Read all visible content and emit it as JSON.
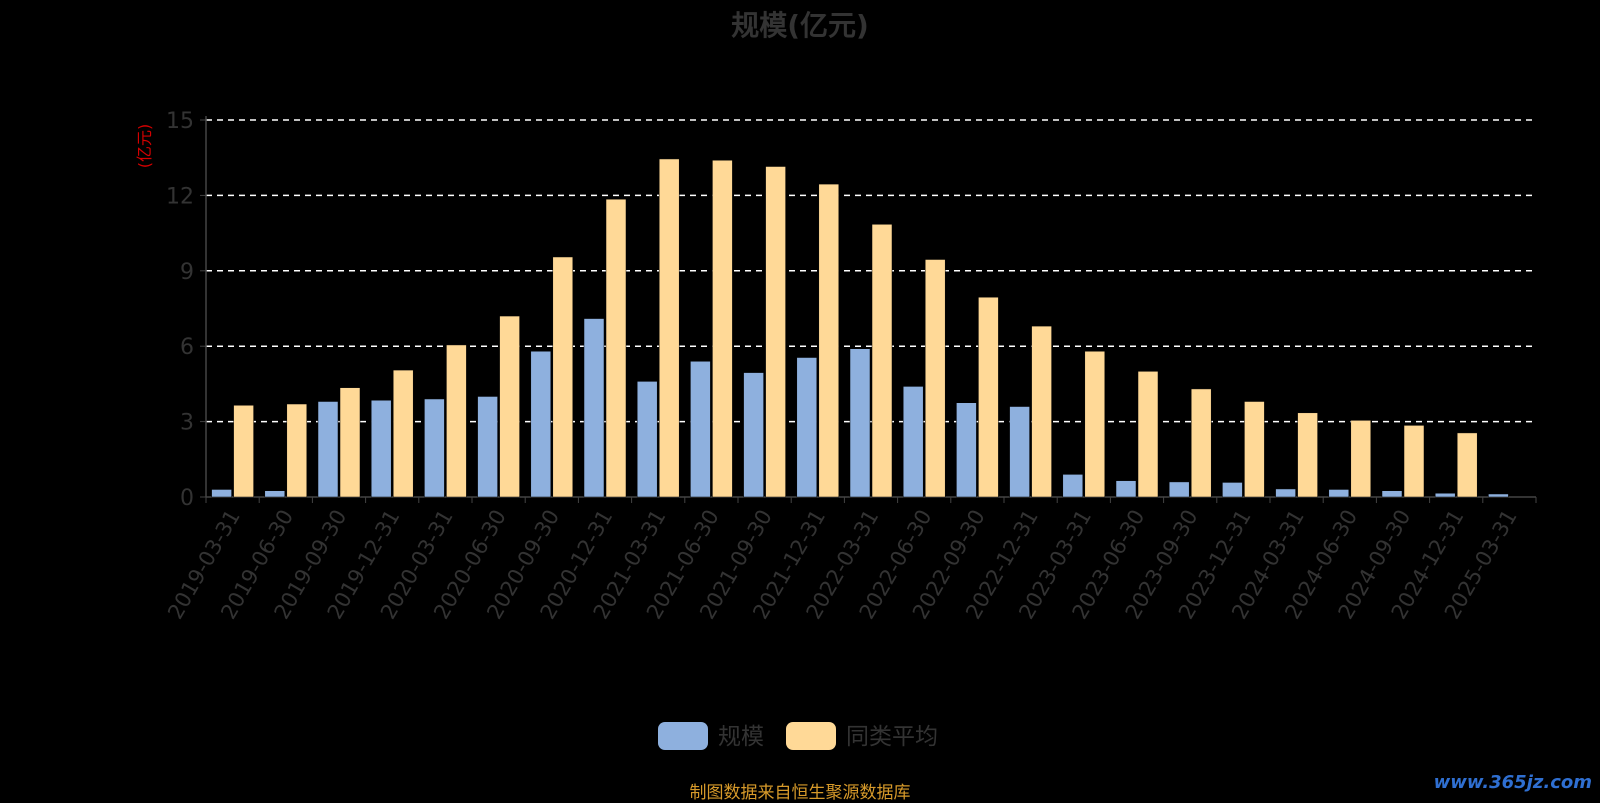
{
  "chart_data": {
    "type": "bar",
    "title": "规模(亿元)",
    "ylabel": "(亿元)",
    "ylim": [
      0,
      15
    ],
    "yticks": [
      0,
      3,
      6,
      9,
      12,
      15
    ],
    "grid": "horizontal dashed",
    "legend_position": "bottom-center",
    "categories": [
      "2019-03-31",
      "2019-06-30",
      "2019-09-30",
      "2019-12-31",
      "2020-03-31",
      "2020-06-30",
      "2020-09-30",
      "2020-12-31",
      "2021-03-31",
      "2021-06-30",
      "2021-09-30",
      "2021-12-31",
      "2022-03-31",
      "2022-06-30",
      "2022-09-30",
      "2022-12-31",
      "2023-03-31",
      "2023-06-30",
      "2023-09-30",
      "2023-12-31",
      "2024-03-31",
      "2024-06-30",
      "2024-09-30",
      "2024-12-31",
      "2025-03-31"
    ],
    "series": [
      {
        "name": "规模",
        "color": "#8eb0de",
        "values": [
          0.3,
          0.25,
          3.8,
          3.85,
          3.9,
          4.0,
          5.8,
          7.1,
          4.6,
          5.4,
          4.95,
          5.55,
          5.9,
          4.4,
          3.75,
          3.6,
          0.9,
          0.65,
          0.6,
          0.58,
          0.32,
          0.3,
          0.25,
          0.15,
          0.12
        ]
      },
      {
        "name": "同类平均",
        "color": "#ffd997",
        "values": [
          3.65,
          3.7,
          4.35,
          5.05,
          6.05,
          7.2,
          9.55,
          11.85,
          13.45,
          13.4,
          13.15,
          12.45,
          10.85,
          9.45,
          7.95,
          6.8,
          5.8,
          5.0,
          4.3,
          3.8,
          3.35,
          3.05,
          2.85,
          2.55,
          null
        ]
      }
    ]
  },
  "source_text": "制图数据来自恒生聚源数据库",
  "watermark_text": "www.365jz.com"
}
